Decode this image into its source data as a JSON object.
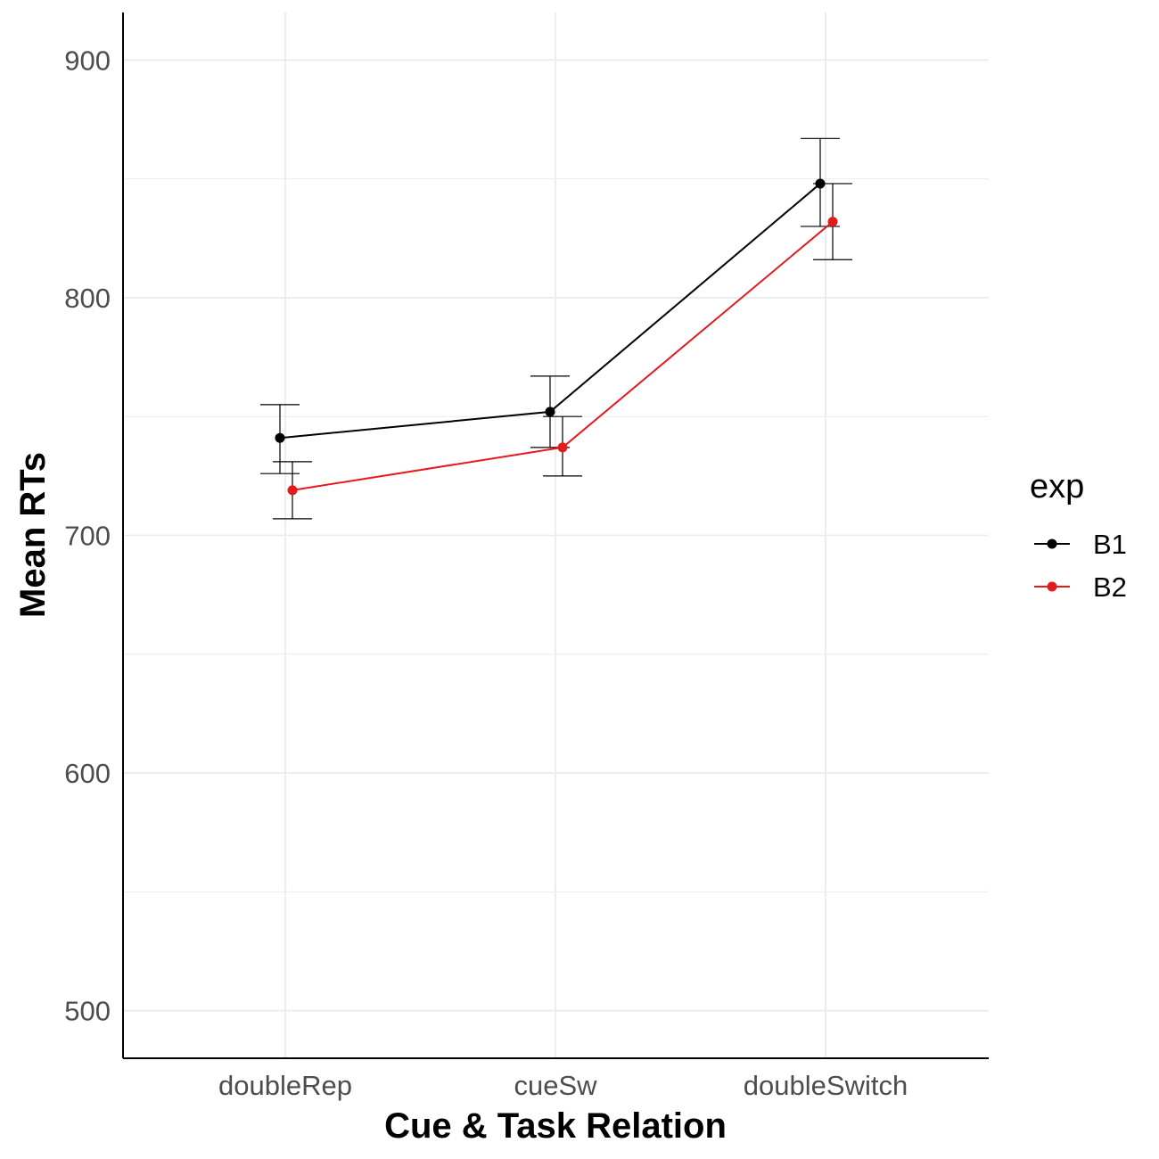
{
  "chart_data": {
    "type": "line",
    "title": "",
    "xlabel": "Cue & Task Relation",
    "ylabel": "Mean RTs",
    "categories": [
      "doubleRep",
      "cueSw",
      "doubleSwitch"
    ],
    "ylim": [
      480,
      920
    ],
    "yticks": [
      500,
      600,
      700,
      800,
      900
    ],
    "grid": true,
    "legend_title": "exp",
    "legend_position": "right",
    "series": [
      {
        "name": "B1",
        "color": "#000000",
        "values": [
          741,
          752,
          848
        ],
        "error_low": [
          726,
          737,
          830
        ],
        "error_high": [
          755,
          767,
          867
        ]
      },
      {
        "name": "B2",
        "color": "#e41a1c",
        "values": [
          719,
          737,
          832
        ],
        "error_low": [
          707,
          725,
          816
        ],
        "error_high": [
          731,
          750,
          848
        ]
      }
    ]
  }
}
